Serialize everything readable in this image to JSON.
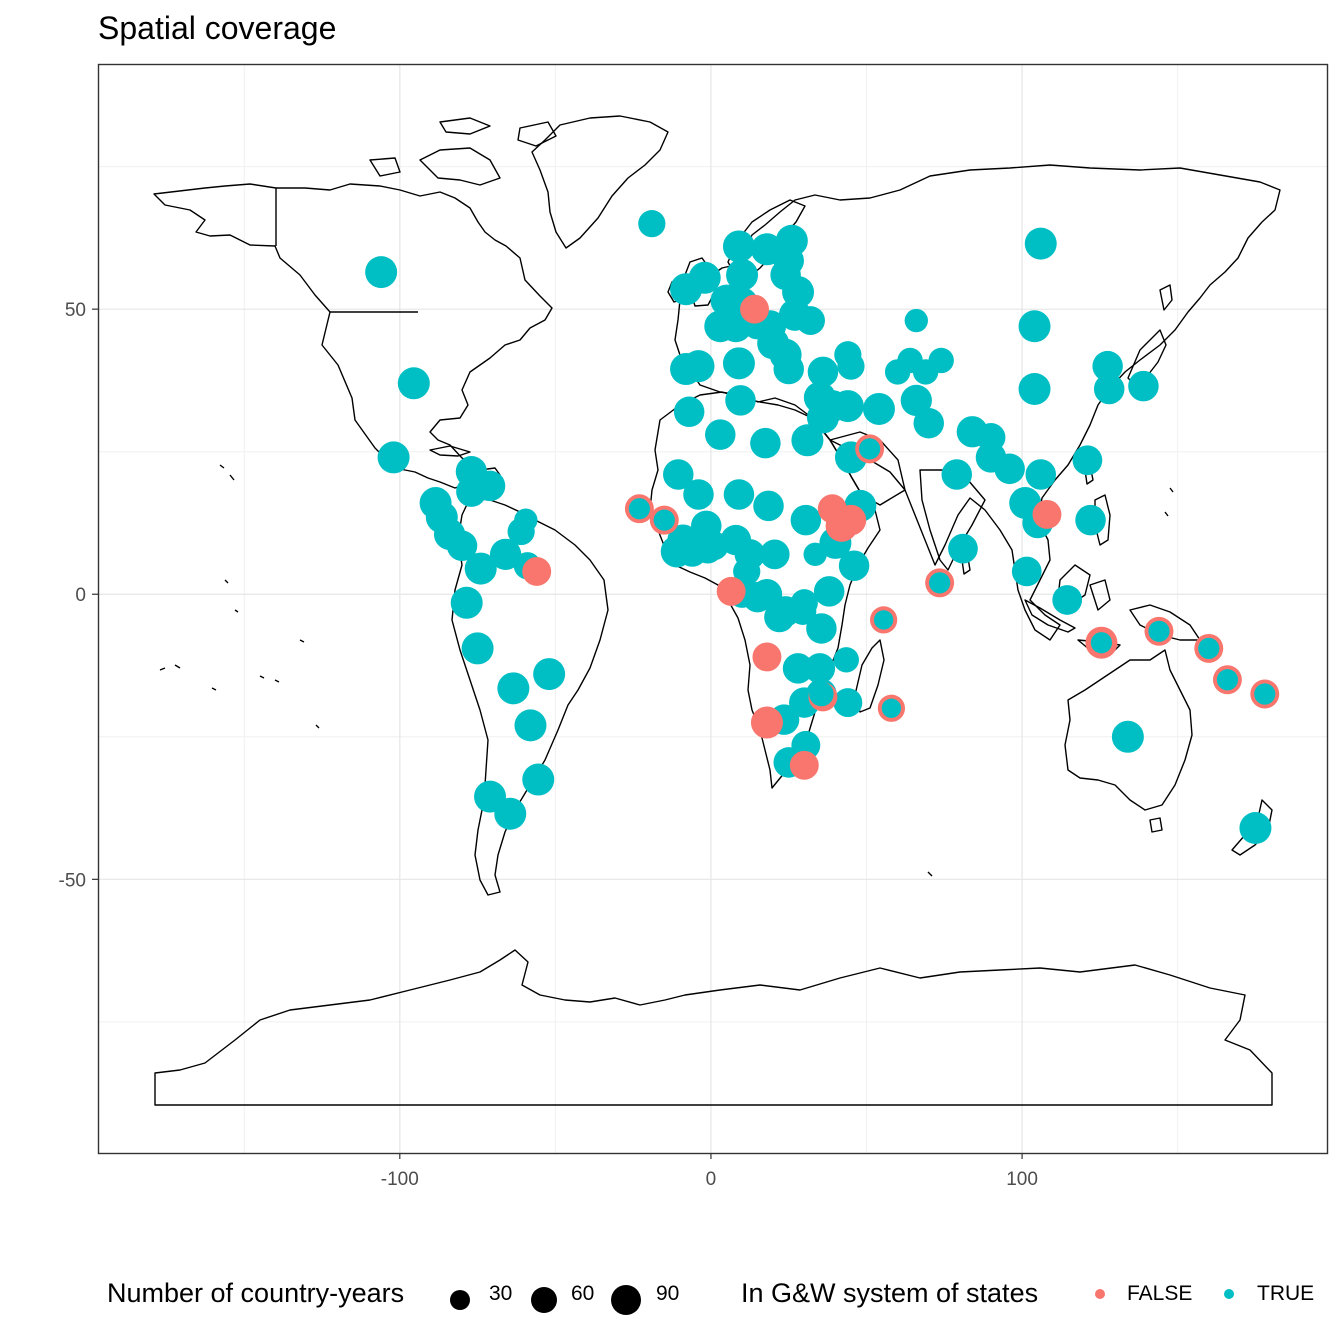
{
  "chart_data": {
    "type": "scatter",
    "title": "Spatial coverage",
    "xlabel": "",
    "ylabel": "",
    "xlim": [
      -197,
      198
    ],
    "ylim": [
      -98,
      93
    ],
    "x_ticks": [
      -100,
      0,
      100
    ],
    "x_tick_labels": [
      "-100",
      "0",
      "100"
    ],
    "y_ticks": [
      -50,
      0,
      50
    ],
    "y_tick_labels": [
      "-50",
      "0",
      "50"
    ],
    "grid": true,
    "basemap": "world country outlines (black lines on white)",
    "legend": {
      "placement": "bottom",
      "size": {
        "title": "Number of country-years",
        "breaks": [
          30,
          60,
          90
        ],
        "labels": [
          "30",
          "60",
          "90"
        ]
      },
      "color": {
        "title": "In G&W system of states",
        "entries": [
          {
            "label": "FALSE",
            "color": "#F8766D"
          },
          {
            "label": "TRUE",
            "color": "#00BFC4"
          }
        ]
      }
    },
    "series": [
      {
        "name": "TRUE",
        "color": "#00BFC4",
        "points": [
          {
            "x": -106,
            "y": 56.5,
            "n": 90
          },
          {
            "x": -95.5,
            "y": 37,
            "n": 90
          },
          {
            "x": -102,
            "y": 24,
            "n": 90
          },
          {
            "x": -77,
            "y": 21.5,
            "n": 85
          },
          {
            "x": -71,
            "y": 19,
            "n": 80
          },
          {
            "x": -77,
            "y": 18,
            "n": 80
          },
          {
            "x": -88.5,
            "y": 16,
            "n": 90
          },
          {
            "x": -86.5,
            "y": 13.5,
            "n": 90
          },
          {
            "x": -84,
            "y": 10.5,
            "n": 85
          },
          {
            "x": -80,
            "y": 8.5,
            "n": 80
          },
          {
            "x": -74,
            "y": 4.5,
            "n": 90
          },
          {
            "x": -66,
            "y": 7,
            "n": 85
          },
          {
            "x": -59,
            "y": 5,
            "n": 60
          },
          {
            "x": -61,
            "y": 11,
            "n": 60
          },
          {
            "x": -59.5,
            "y": 13,
            "n": 40
          },
          {
            "x": -78.5,
            "y": -1.5,
            "n": 90
          },
          {
            "x": -75,
            "y": -9.5,
            "n": 90
          },
          {
            "x": -63.5,
            "y": -16.5,
            "n": 90
          },
          {
            "x": -52,
            "y": -14,
            "n": 90
          },
          {
            "x": -58,
            "y": -23,
            "n": 90
          },
          {
            "x": -55.5,
            "y": -32.5,
            "n": 90
          },
          {
            "x": -71,
            "y": -35.5,
            "n": 90
          },
          {
            "x": -64.5,
            "y": -38.5,
            "n": 90
          },
          {
            "x": -19,
            "y": 65,
            "n": 60
          },
          {
            "x": -8,
            "y": 53.5,
            "n": 90
          },
          {
            "x": -2,
            "y": 55.5,
            "n": 90
          },
          {
            "x": 9,
            "y": 61,
            "n": 90
          },
          {
            "x": 18,
            "y": 60.5,
            "n": 90
          },
          {
            "x": 26,
            "y": 62,
            "n": 90
          },
          {
            "x": 10,
            "y": 56,
            "n": 90
          },
          {
            "x": 25,
            "y": 58.5,
            "n": 80
          },
          {
            "x": 24,
            "y": 56,
            "n": 80
          },
          {
            "x": 5,
            "y": 51.5,
            "n": 90
          },
          {
            "x": 3,
            "y": 47,
            "n": 90
          },
          {
            "x": 10,
            "y": 51,
            "n": 90
          },
          {
            "x": 15,
            "y": 47.5,
            "n": 90
          },
          {
            "x": 19,
            "y": 47,
            "n": 90
          },
          {
            "x": 27,
            "y": 49,
            "n": 90
          },
          {
            "x": 28,
            "y": 53,
            "n": 90
          },
          {
            "x": 32,
            "y": 48,
            "n": 70
          },
          {
            "x": 20,
            "y": 44,
            "n": 90
          },
          {
            "x": 24,
            "y": 42,
            "n": 90
          },
          {
            "x": 25,
            "y": 39.5,
            "n": 80
          },
          {
            "x": 8,
            "y": 47,
            "n": 90
          },
          {
            "x": -8,
            "y": 39.5,
            "n": 90
          },
          {
            "x": -4,
            "y": 40,
            "n": 90
          },
          {
            "x": 9,
            "y": 40.5,
            "n": 90
          },
          {
            "x": -7,
            "y": 32,
            "n": 80
          },
          {
            "x": 3,
            "y": 28,
            "n": 80
          },
          {
            "x": 9.5,
            "y": 34,
            "n": 80
          },
          {
            "x": 17.5,
            "y": 26.5,
            "n": 80
          },
          {
            "x": 36,
            "y": 39,
            "n": 80
          },
          {
            "x": 35,
            "y": 34.5,
            "n": 90
          },
          {
            "x": 39,
            "y": 33,
            "n": 90
          },
          {
            "x": 44,
            "y": 33,
            "n": 90
          },
          {
            "x": 36,
            "y": 31,
            "n": 90
          },
          {
            "x": 31,
            "y": 27,
            "n": 90
          },
          {
            "x": 45,
            "y": 40,
            "n": 60
          },
          {
            "x": 44,
            "y": 42,
            "n": 60
          },
          {
            "x": 54,
            "y": 32.5,
            "n": 90
          },
          {
            "x": 45,
            "y": 24,
            "n": 90
          },
          {
            "x": 48,
            "y": 15.5,
            "n": 90
          },
          {
            "x": 40,
            "y": 9,
            "n": 90
          },
          {
            "x": 46,
            "y": 5,
            "n": 80
          },
          {
            "x": 38,
            "y": 0.5,
            "n": 80
          },
          {
            "x": 30.5,
            "y": 13,
            "n": 80
          },
          {
            "x": 33.5,
            "y": 7,
            "n": 40
          },
          {
            "x": 20.5,
            "y": 7,
            "n": 75
          },
          {
            "x": 18.5,
            "y": 15.5,
            "n": 80
          },
          {
            "x": 9,
            "y": 17.5,
            "n": 80
          },
          {
            "x": -4,
            "y": 17.5,
            "n": 80
          },
          {
            "x": -10.5,
            "y": 21,
            "n": 80
          },
          {
            "x": -1.5,
            "y": 12,
            "n": 80
          },
          {
            "x": 8,
            "y": 9.5,
            "n": 80
          },
          {
            "x": 12.5,
            "y": 7,
            "n": 80
          },
          {
            "x": -11,
            "y": 7.5,
            "n": 90
          },
          {
            "x": -9,
            "y": 9.5,
            "n": 85
          },
          {
            "x": -6,
            "y": 7.5,
            "n": 80
          },
          {
            "x": -1,
            "y": 8,
            "n": 75
          },
          {
            "x": 1,
            "y": 8.5,
            "n": 70
          },
          {
            "x": 11.5,
            "y": 4,
            "n": 60
          },
          {
            "x": 18,
            "y": 0,
            "n": 80
          },
          {
            "x": 15,
            "y": -0.5,
            "n": 80
          },
          {
            "x": 10,
            "y": 0,
            "n": 60
          },
          {
            "x": 24,
            "y": -3,
            "n": 80
          },
          {
            "x": 30,
            "y": -1.5,
            "n": 60
          },
          {
            "x": 29.5,
            "y": -3,
            "n": 60
          },
          {
            "x": 35.5,
            "y": -6,
            "n": 80
          },
          {
            "x": 22,
            "y": -4,
            "n": 80
          },
          {
            "x": 28,
            "y": -13,
            "n": 80
          },
          {
            "x": 30,
            "y": -19,
            "n": 80
          },
          {
            "x": 35,
            "y": -13,
            "n": 80
          },
          {
            "x": 35.5,
            "y": -17.5,
            "n": 80
          },
          {
            "x": 23.5,
            "y": -22,
            "n": 80
          },
          {
            "x": 25,
            "y": -29.5,
            "n": 80
          },
          {
            "x": 30.5,
            "y": -26.5,
            "n": 70
          },
          {
            "x": 44,
            "y": -19,
            "n": 70
          },
          {
            "x": 43.5,
            "y": -11.5,
            "n": 50
          },
          {
            "x": 66,
            "y": 48,
            "n": 40
          },
          {
            "x": 64,
            "y": 41,
            "n": 50
          },
          {
            "x": 60,
            "y": 39,
            "n": 50
          },
          {
            "x": 69,
            "y": 39,
            "n": 50
          },
          {
            "x": 74,
            "y": 41,
            "n": 50
          },
          {
            "x": 66,
            "y": 34,
            "n": 85
          },
          {
            "x": 70,
            "y": 30,
            "n": 80
          },
          {
            "x": 79,
            "y": 21,
            "n": 80
          },
          {
            "x": 81,
            "y": 8,
            "n": 75
          },
          {
            "x": 84,
            "y": 28.5,
            "n": 85
          },
          {
            "x": 90,
            "y": 27.5,
            "n": 70
          },
          {
            "x": 90,
            "y": 24,
            "n": 80
          },
          {
            "x": 96,
            "y": 22,
            "n": 80
          },
          {
            "x": 101,
            "y": 16,
            "n": 90
          },
          {
            "x": 105,
            "y": 12.5,
            "n": 80
          },
          {
            "x": 106,
            "y": 21,
            "n": 80
          },
          {
            "x": 101.5,
            "y": 4,
            "n": 75
          },
          {
            "x": 114.5,
            "y": -1,
            "n": 75
          },
          {
            "x": 104,
            "y": 47,
            "n": 90
          },
          {
            "x": 104,
            "y": 36,
            "n": 90
          },
          {
            "x": 106,
            "y": 61.5,
            "n": 90
          },
          {
            "x": 127.5,
            "y": 40,
            "n": 80
          },
          {
            "x": 128,
            "y": 36,
            "n": 80
          },
          {
            "x": 139,
            "y": 36.5,
            "n": 80
          },
          {
            "x": 121,
            "y": 23.5,
            "n": 75
          },
          {
            "x": 122,
            "y": 13,
            "n": 80
          },
          {
            "x": 134,
            "y": -25,
            "n": 90
          },
          {
            "x": 175,
            "y": -41,
            "n": 90
          },
          {
            "x": 144,
            "y": -6.5,
            "n": 60
          },
          {
            "x": 160,
            "y": -9.5,
            "n": 60
          },
          {
            "x": 166,
            "y": -15,
            "n": 60
          },
          {
            "x": 178,
            "y": -17.5,
            "n": 60
          },
          {
            "x": 125.5,
            "y": -8.5,
            "n": 60
          },
          {
            "x": 73.5,
            "y": 2,
            "n": 60
          },
          {
            "x": 55.5,
            "y": -4.5,
            "n": 50
          },
          {
            "x": 58,
            "y": -20,
            "n": 50
          },
          {
            "x": -23,
            "y": 15,
            "n": 60
          },
          {
            "x": -15,
            "y": 13,
            "n": 60
          },
          {
            "x": 51,
            "y": 25.5,
            "n": 60
          }
        ]
      },
      {
        "name": "FALSE",
        "color": "#F8766D",
        "points": [
          {
            "x": 14,
            "y": 50,
            "n": 70
          },
          {
            "x": -23,
            "y": 15,
            "n": 70
          },
          {
            "x": -15,
            "y": 13,
            "n": 70
          },
          {
            "x": 39,
            "y": 15,
            "n": 70
          },
          {
            "x": 42,
            "y": 12,
            "n": 90
          },
          {
            "x": 45,
            "y": 13,
            "n": 80
          },
          {
            "x": 51,
            "y": 25.5,
            "n": 70
          },
          {
            "x": -56,
            "y": 4,
            "n": 70
          },
          {
            "x": 6.5,
            "y": 0.5,
            "n": 70
          },
          {
            "x": 18,
            "y": -11,
            "n": 70
          },
          {
            "x": 18,
            "y": -22.5,
            "n": 90
          },
          {
            "x": 55.5,
            "y": -4.5,
            "n": 60
          },
          {
            "x": 58,
            "y": -20,
            "n": 60
          },
          {
            "x": 73.5,
            "y": 2,
            "n": 70
          },
          {
            "x": 108,
            "y": 14,
            "n": 70
          },
          {
            "x": 125.5,
            "y": -8.5,
            "n": 90
          },
          {
            "x": 144,
            "y": -6.5,
            "n": 70
          },
          {
            "x": 160,
            "y": -9.5,
            "n": 70
          },
          {
            "x": 166,
            "y": -15,
            "n": 70
          },
          {
            "x": 178,
            "y": -17.5,
            "n": 70
          },
          {
            "x": 30,
            "y": -30,
            "n": 70
          },
          {
            "x": 36,
            "y": -18,
            "n": 70
          }
        ]
      }
    ]
  }
}
